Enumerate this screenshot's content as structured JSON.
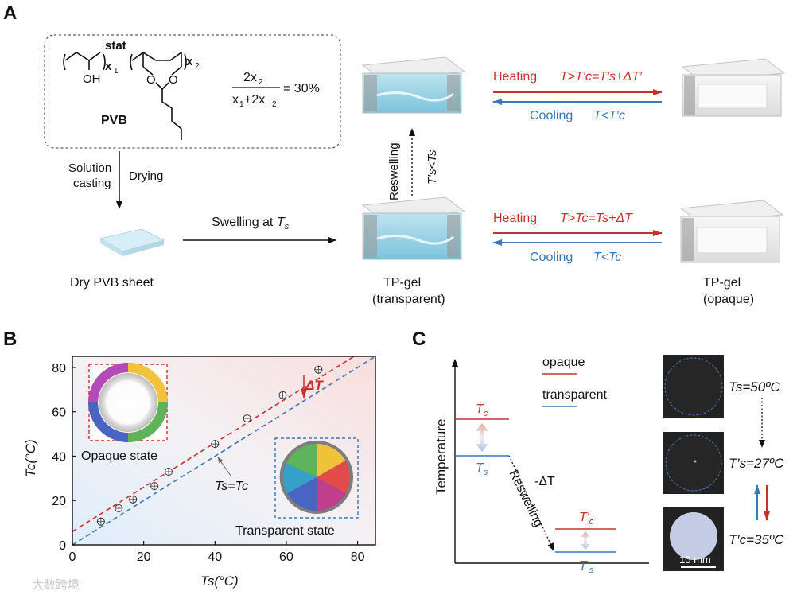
{
  "panels": {
    "a": "A",
    "b": "B",
    "c": "C"
  },
  "panel_a": {
    "polymer": {
      "stat": "stat",
      "x1": "x",
      "x1_sub": "1",
      "x2": "x",
      "x2_sub": "2",
      "oh": "OH",
      "o1": "O",
      "o2": "O",
      "name": "PVB"
    },
    "ratio": {
      "numerator": "2x",
      "numerator_sub": "2",
      "denominator_a": "x",
      "denominator_a_sub": "1",
      "denominator_b": "+2x",
      "denominator_b_sub": "2",
      "value": "= 30%"
    },
    "solution_casting": [
      "Solution",
      "casting"
    ],
    "drying": "Drying",
    "dry_sheet": "Dry PVB sheet",
    "swelling": "Swelling at ",
    "swelling_T": "T",
    "swelling_sub": "s",
    "reswelling": "Reswelling",
    "reswell_cond": "T′s<Ts",
    "heating": "Heating",
    "cooling": "Cooling",
    "heat_top": "T>T′c=T′s+ΔT′",
    "cool_top": "T<T′c",
    "heat_bottom": "T>Tc=Ts+ΔT",
    "cool_bottom": "T<Tc",
    "gel_transparent": [
      "TP-gel",
      "(transparent)"
    ],
    "gel_opaque": [
      "TP-gel",
      "(opaque)"
    ]
  },
  "chart_data": {
    "type": "scatter",
    "xlabel": "Ts(°C)",
    "ylabel": "Tc(°C)",
    "xlim": [
      0,
      85
    ],
    "ylim": [
      0,
      85
    ],
    "xticks": [
      0,
      20,
      40,
      60,
      80
    ],
    "yticks": [
      0,
      20,
      40,
      60,
      80
    ],
    "series": [
      {
        "name": "data",
        "x": [
          8,
          13,
          17,
          23,
          27,
          40,
          49,
          59,
          69
        ],
        "y": [
          10.5,
          16.5,
          20.5,
          26.5,
          33,
          45.5,
          57,
          67.5,
          79
        ]
      }
    ],
    "fit_line": {
      "slope": 1.0,
      "intercept": 6
    },
    "identity_label": "Ts=Tc",
    "delta_label": "ΔT",
    "opaque_label": "Opaque state",
    "transparent_label": "Transparent state"
  },
  "panel_c": {
    "ylabel": "Temperature",
    "legend": [
      {
        "label": "opaque",
        "color": "#c8302e"
      },
      {
        "label": "transparent",
        "color": "#3a76b8"
      }
    ],
    "tc": "T",
    "tc_sub": "c",
    "ts": "T",
    "ts_sub": "s",
    "tcp": "T′",
    "tcp_sub": "c",
    "tsp": "T′",
    "tsp_sub": "s",
    "reswelling": "Reswelling",
    "delta": "-ΔT",
    "photo_labels": [
      "Ts=50ºC",
      "T′s=27ºC",
      "T′c=35ºC"
    ],
    "scale": "10 mm"
  },
  "watermark": "大数跨境",
  "colors": {
    "red": "#c8302e",
    "blue": "#3a76b8"
  }
}
